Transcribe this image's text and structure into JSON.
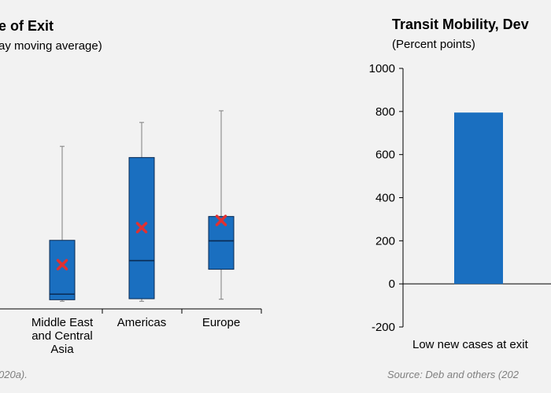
{
  "colors": {
    "box": "#1a6fc0",
    "box_stroke": "#0a2a52",
    "mean": "#e03131",
    "whisker": "#7f7f7f",
    "bar": "#1a6fc0",
    "axis": "#000000",
    "source": "#7f7f7f"
  },
  "chart_data": [
    {
      "type": "box",
      "title": "e of Exit",
      "subtitle": "ay moving average)",
      "categories": [
        {
          "lines": [
            "Middle  East",
            "and Central",
            "Asia"
          ]
        },
        {
          "lines": [
            "Americas"
          ]
        },
        {
          "lines": [
            "Europe"
          ]
        }
      ],
      "boxes": [
        {
          "min": 0,
          "q1": 3,
          "median": 14,
          "q3": 120,
          "max": 305,
          "mean": 72
        },
        {
          "min": 0,
          "q1": 5,
          "median": 80,
          "q3": 283,
          "max": 352,
          "mean": 145
        },
        {
          "min": 4,
          "q1": 63,
          "median": 119,
          "q3": 167,
          "max": 375,
          "mean": 159
        }
      ],
      "ylim": [
        -15,
        460
      ],
      "source": "020a)."
    },
    {
      "type": "bar",
      "title": "Transit Mobility, Dev",
      "subtitle": "(Percent points)",
      "categories": [
        "Low new cases at exit"
      ],
      "values": [
        795
      ],
      "ylim": [
        -200,
        1000
      ],
      "yticks": [
        -200,
        0,
        200,
        400,
        600,
        800,
        1000
      ],
      "source": "Source: Deb and others (202"
    }
  ]
}
